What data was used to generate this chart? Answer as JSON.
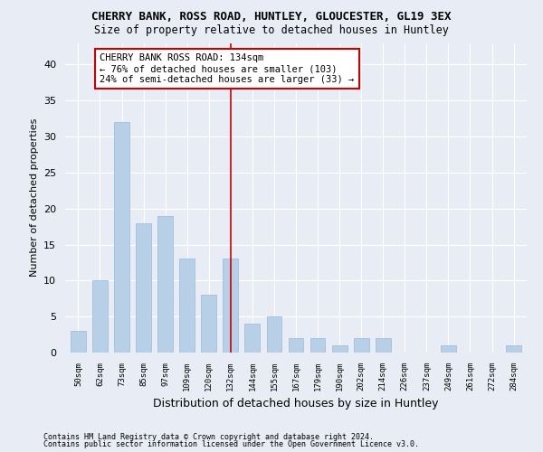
{
  "title": "CHERRY BANK, ROSS ROAD, HUNTLEY, GLOUCESTER, GL19 3EX",
  "subtitle": "Size of property relative to detached houses in Huntley",
  "xlabel": "Distribution of detached houses by size in Huntley",
  "ylabel": "Number of detached properties",
  "footer_line1": "Contains HM Land Registry data © Crown copyright and database right 2024.",
  "footer_line2": "Contains public sector information licensed under the Open Government Licence v3.0.",
  "bar_labels": [
    "50sqm",
    "62sqm",
    "73sqm",
    "85sqm",
    "97sqm",
    "109sqm",
    "120sqm",
    "132sqm",
    "144sqm",
    "155sqm",
    "167sqm",
    "179sqm",
    "190sqm",
    "202sqm",
    "214sqm",
    "226sqm",
    "237sqm",
    "249sqm",
    "261sqm",
    "272sqm",
    "284sqm"
  ],
  "bar_values": [
    3,
    10,
    32,
    18,
    19,
    13,
    8,
    13,
    4,
    5,
    2,
    2,
    1,
    2,
    2,
    0,
    0,
    1,
    0,
    0,
    1
  ],
  "bar_color": "#b8cfe8",
  "bar_edge_color": "#9ab8d8",
  "background_color": "#e8edf5",
  "grid_color": "#ffffff",
  "annotation_text": "CHERRY BANK ROSS ROAD: 134sqm\n← 76% of detached houses are smaller (103)\n24% of semi-detached houses are larger (33) →",
  "vline_index": 7,
  "vline_color": "#cc0000",
  "annotation_box_color": "#ffffff",
  "annotation_box_edgecolor": "#cc0000",
  "ylim": [
    0,
    43
  ],
  "yticks": [
    0,
    5,
    10,
    15,
    20,
    25,
    30,
    35,
    40
  ]
}
